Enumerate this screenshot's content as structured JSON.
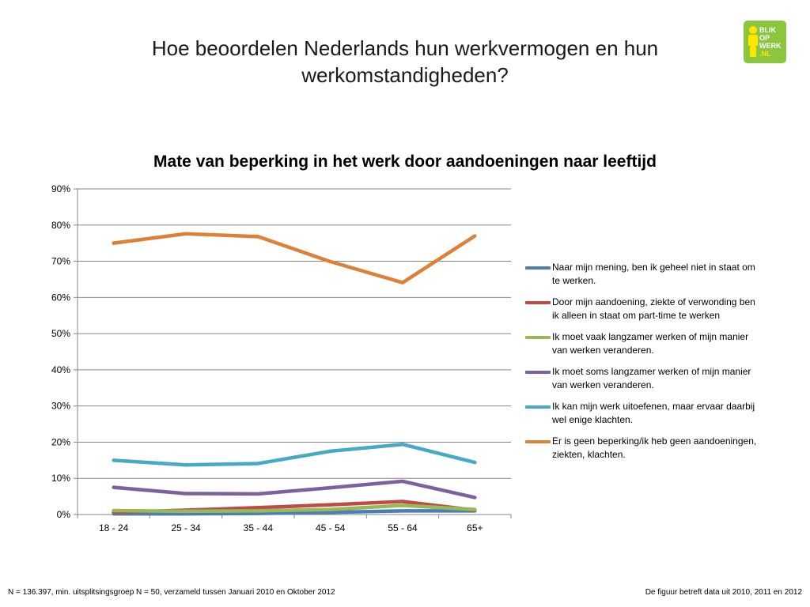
{
  "slide": {
    "title_line1": "Hoe beoordelen Nederlands hun werkvermogen en hun",
    "title_line2": "werkomstandigheden?"
  },
  "logo": {
    "line1": "BLIK",
    "line2": "OP",
    "line3": "WERK",
    "line4": ".NL",
    "color": "#8cc63f"
  },
  "footnote": {
    "left": "N = 136.397, min. uitsplitsingsgroep N = 50, verzameld tussen Januari 2010 en Oktober 2012",
    "right": "De figuur betreft data uit 2010, 2011 en 2012"
  },
  "chart_data": {
    "type": "line",
    "title": "Mate van beperking in het werk door aandoeningen naar leeftijd",
    "xlabel": "",
    "ylabel": "",
    "categories": [
      "18 - 24",
      "25 - 34",
      "35 - 44",
      "45 - 54",
      "55 - 64",
      "65+"
    ],
    "ylim": [
      0,
      90
    ],
    "yticks": [
      0,
      10,
      20,
      30,
      40,
      50,
      60,
      70,
      80,
      90
    ],
    "ytick_labels": [
      "0%",
      "10%",
      "20%",
      "30%",
      "40%",
      "50%",
      "60%",
      "70%",
      "80%",
      "90%"
    ],
    "grid": true,
    "legend_position": "right",
    "series": [
      {
        "name": "Naar mijn mening, ben ik geheel niet in staat om te werken.",
        "color": "#4a7ebb",
        "values": [
          0.2,
          0.2,
          0.3,
          0.6,
          1.0,
          1.0
        ]
      },
      {
        "name": "Door mijn aandoening, ziekte of verwonding ben ik alleen in staat om part-time te werken",
        "color": "#be4b48",
        "values": [
          0.6,
          1.2,
          1.9,
          2.7,
          3.6,
          1.2
        ]
      },
      {
        "name": "Ik moet vaak langzamer werken of mijn manier van werken veranderen.",
        "color": "#98b954",
        "values": [
          1.1,
          0.9,
          1.0,
          1.4,
          2.5,
          1.4
        ]
      },
      {
        "name": "Ik moet soms langzamer werken of mijn manier van werken veranderen.",
        "color": "#7d60a0",
        "values": [
          7.5,
          5.8,
          5.7,
          7.4,
          9.2,
          4.7
        ]
      },
      {
        "name": "Ik kan mijn werk uitoefenen, maar ervaar daarbij wel enige klachten.",
        "color": "#46aac5",
        "values": [
          15.0,
          13.7,
          14.1,
          17.5,
          19.4,
          14.4
        ]
      },
      {
        "name": "Er is geen beperking/ik heb geen aandoeningen, ziekten, klachten.",
        "color": "#dd8139",
        "values": [
          75.0,
          77.6,
          76.8,
          69.9,
          64.1,
          77.0
        ]
      }
    ]
  }
}
